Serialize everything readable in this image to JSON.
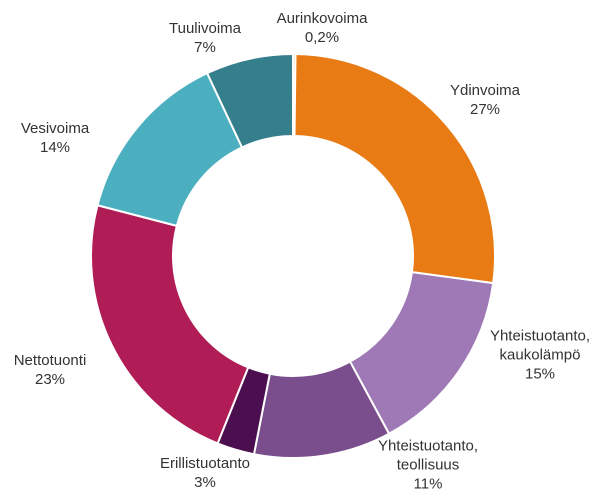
{
  "chart_data": {
    "type": "donut",
    "categories": [
      "Aurinkovoima",
      "Ydinvoima",
      "Yhteistuotanto, kaukolämpö",
      "Yhteistuotanto, teollisuus",
      "Erillistuotanto",
      "Nettotuonti",
      "Vesivoima",
      "Tuulivoima"
    ],
    "values": [
      0.2,
      27,
      15,
      11,
      3,
      23,
      14,
      7
    ],
    "value_labels": [
      "0,2%",
      "27%",
      "15%",
      "11%",
      "3%",
      "23%",
      "14%",
      "7%"
    ],
    "colors": [
      "#f3df8c",
      "#e97b14",
      "#9e79b6",
      "#7a4e8d",
      "#4b0f50",
      "#b01c56",
      "#4bafc0",
      "#357e8c"
    ]
  }
}
